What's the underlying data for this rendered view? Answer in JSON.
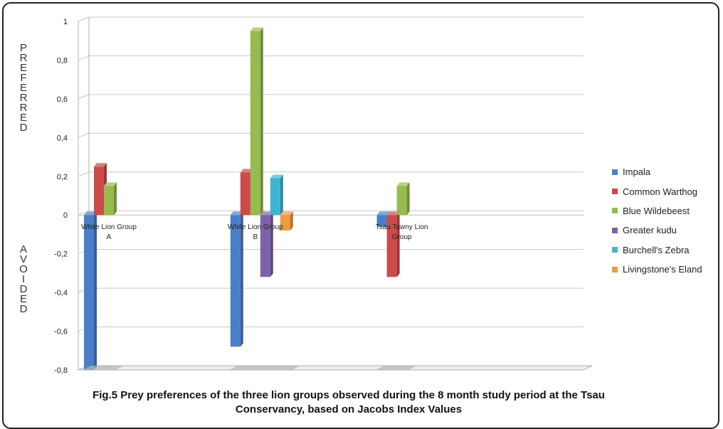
{
  "chart_data": {
    "type": "bar",
    "title": "Fig.5  Prey preferences of the three lion groups observed during the 8 month study period  at the Tsau Conservancy, based on Jacobs Index Values",
    "categories": [
      "White Lion Group A",
      "White Lion Group B",
      "Tsau Tawny Lion Group"
    ],
    "ylim": [
      -0.8,
      1
    ],
    "yticks": [
      "1",
      "0,8",
      "0,6",
      "0,4",
      "0,2",
      "0",
      "-0,2",
      "-0,4",
      "-0,6",
      "-0,8"
    ],
    "grid": true,
    "legend_position": "right",
    "side_labels": {
      "top": "PREFERRED",
      "bottom": "AVOIDED"
    },
    "series": [
      {
        "name": "Impala",
        "color": "#4a7fc8",
        "values": [
          -0.8,
          -0.68,
          -0.06
        ]
      },
      {
        "name": "Common Warthog",
        "color": "#cc4b48",
        "values": [
          0.25,
          0.22,
          -0.32
        ]
      },
      {
        "name": "Blue Wildebeest",
        "color": "#96bb4e",
        "values": [
          0.15,
          0.95,
          0.15
        ]
      },
      {
        "name": "Greater kudu",
        "color": "#7d63a6",
        "values": [
          null,
          -0.32,
          null
        ]
      },
      {
        "name": "Burchell's Zebra",
        "color": "#3fb4d0",
        "values": [
          null,
          0.19,
          null
        ]
      },
      {
        "name": "Livingstone's Eland",
        "color": "#f19a3c",
        "values": [
          null,
          -0.08,
          null
        ]
      }
    ]
  }
}
